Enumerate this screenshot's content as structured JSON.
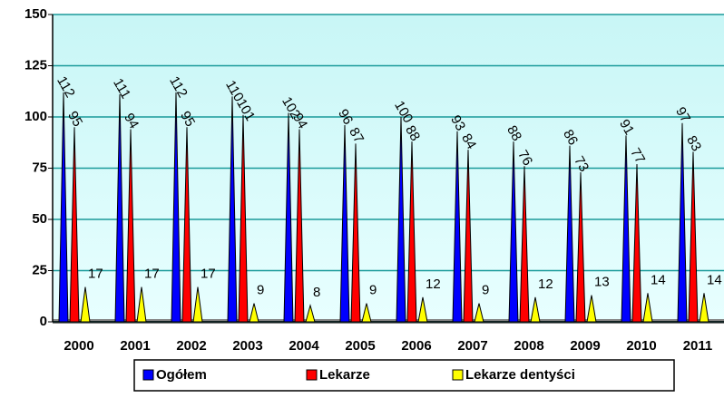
{
  "chart_data": {
    "type": "spike",
    "categories": [
      "2000",
      "2001",
      "2002",
      "2003",
      "2004",
      "2005",
      "2006",
      "2007",
      "2008",
      "2009",
      "2010",
      "2011"
    ],
    "series": [
      {
        "name": "Ogółem",
        "color": "#0000ff",
        "values": [
          112,
          111,
          112,
          110,
          102,
          96,
          100,
          93,
          88,
          86,
          91,
          97
        ]
      },
      {
        "name": "Lekarze",
        "color": "#ff0000",
        "values": [
          95,
          94,
          95,
          101,
          94,
          87,
          88,
          84,
          76,
          73,
          77,
          83
        ]
      },
      {
        "name": "Lekarze dentyści",
        "color": "#ffff00",
        "values": [
          17,
          17,
          17,
          9,
          8,
          9,
          12,
          9,
          12,
          13,
          14,
          14
        ]
      }
    ],
    "ylim": [
      0,
      150
    ],
    "yticks": [
      0,
      25,
      50,
      75,
      100,
      125,
      150
    ],
    "grid": true,
    "legend": "bottom"
  }
}
